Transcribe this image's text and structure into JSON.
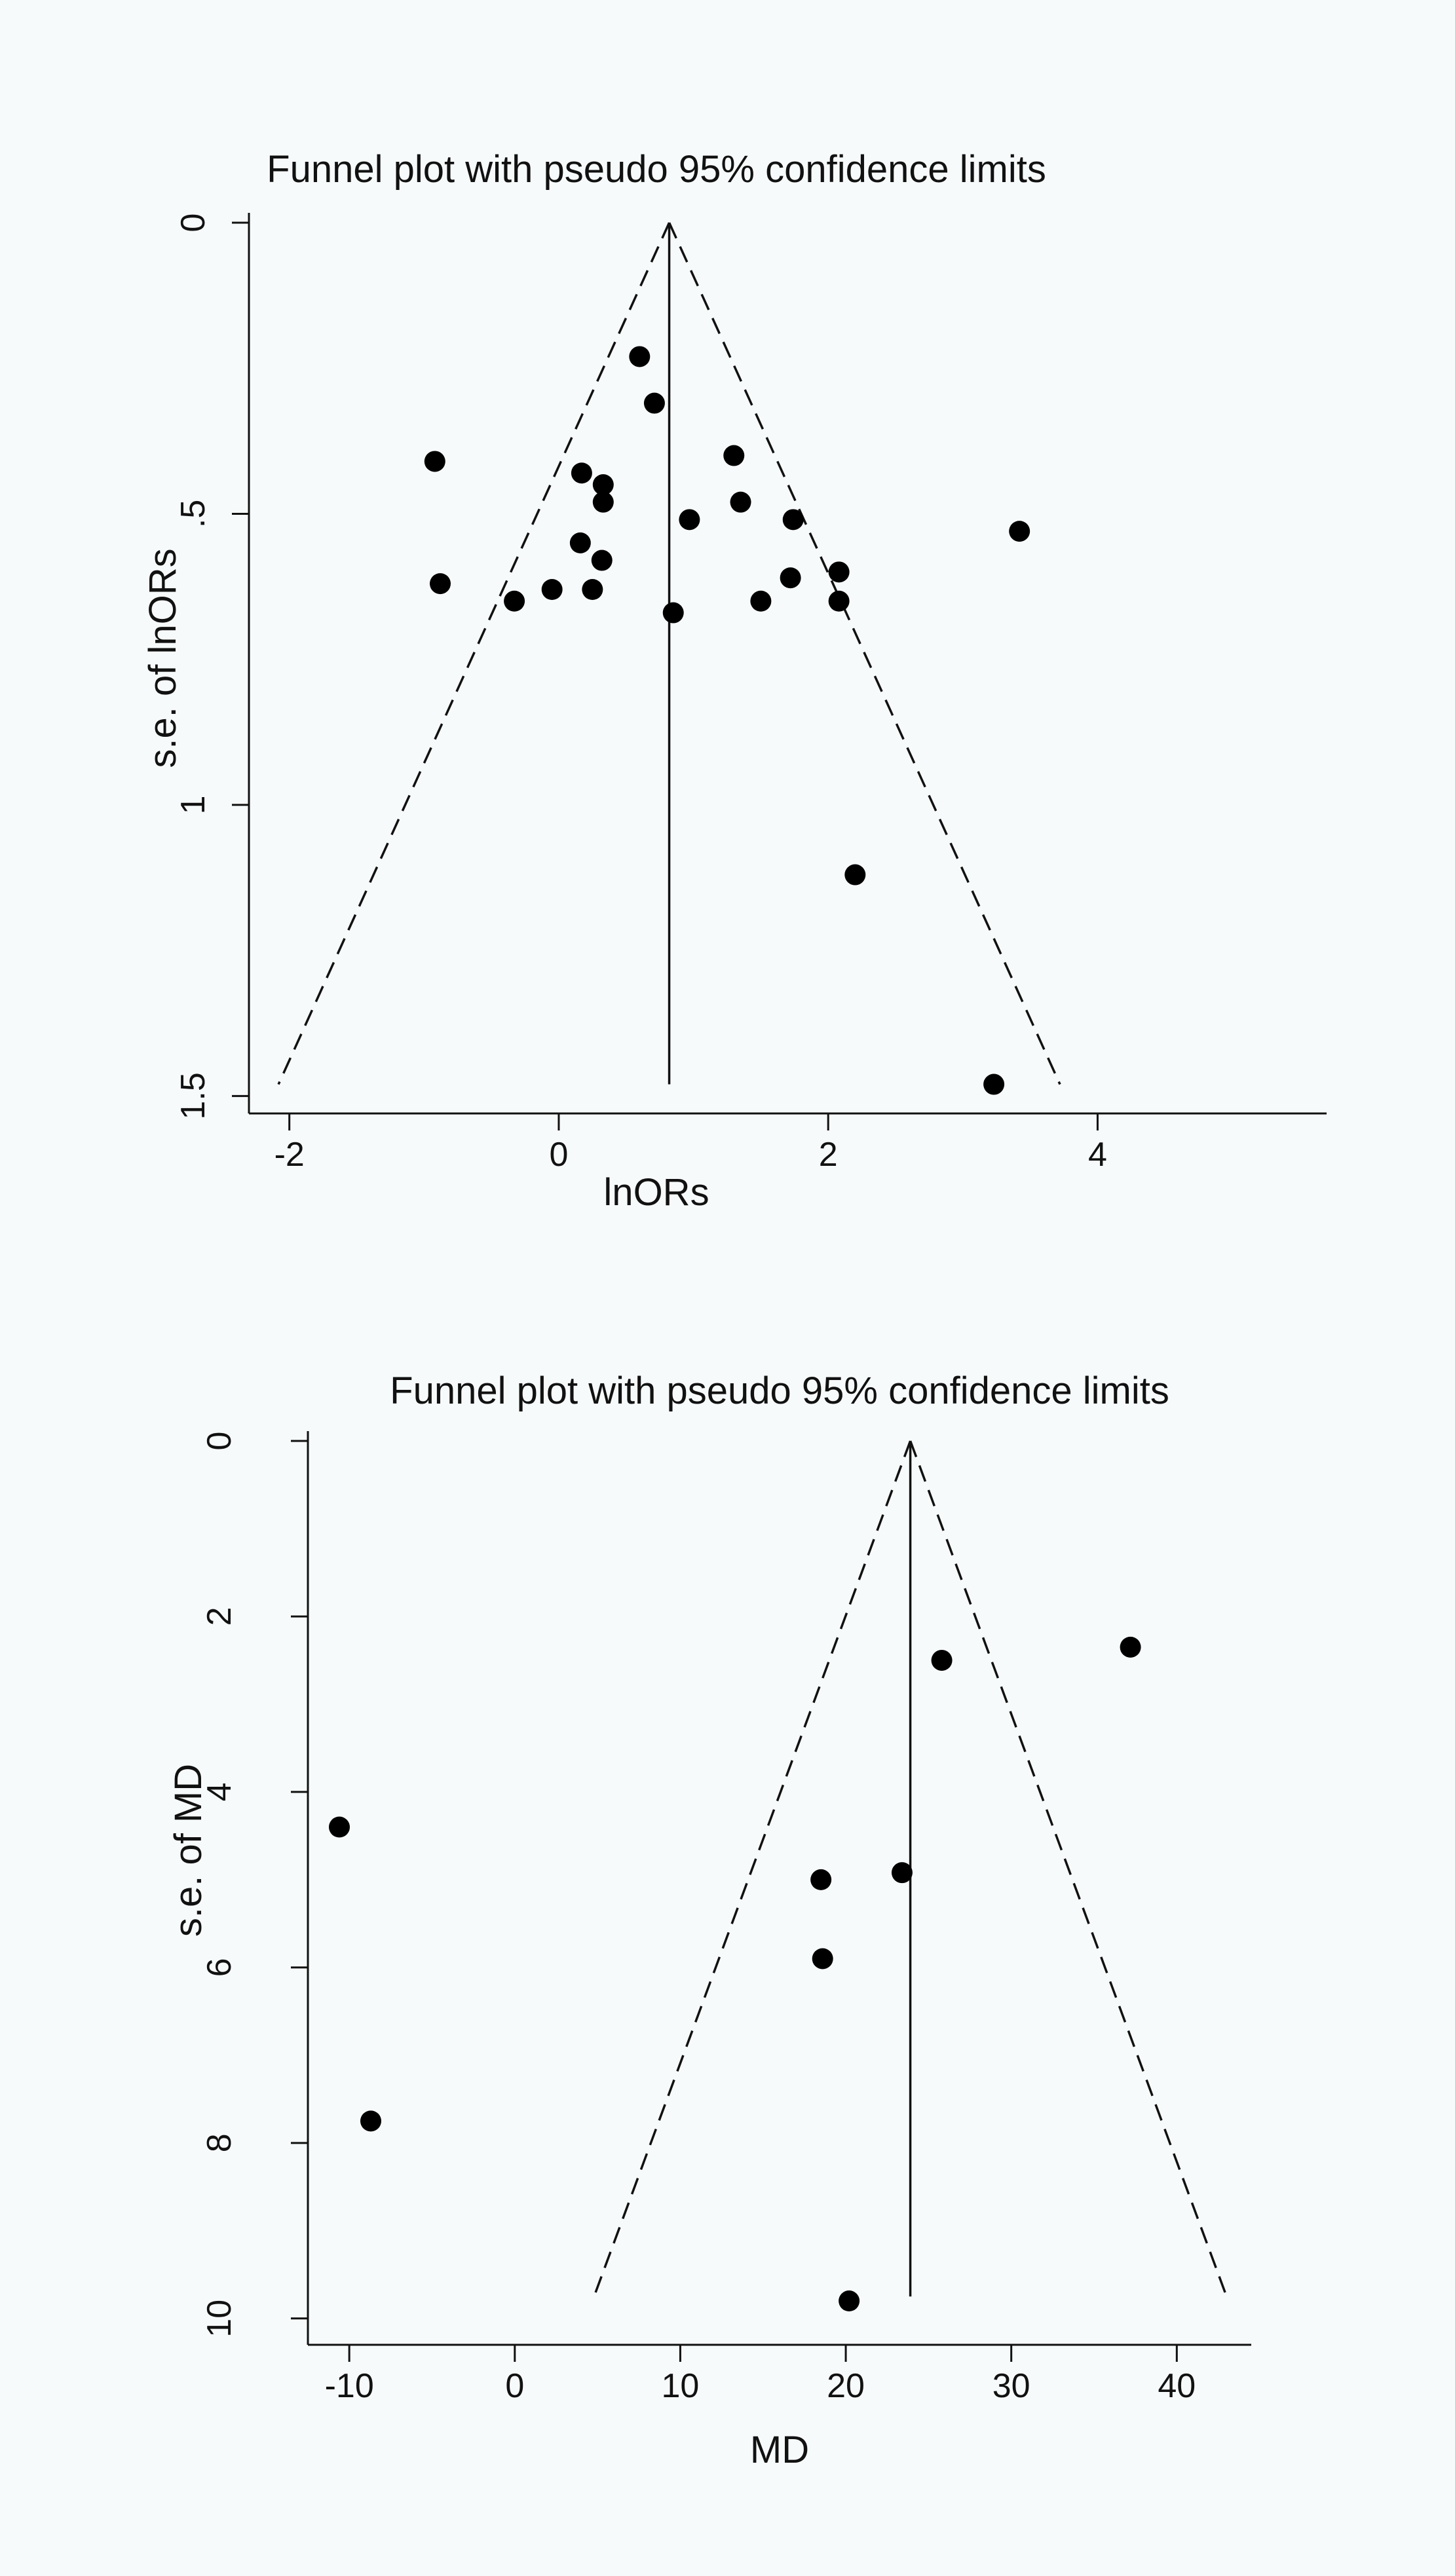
{
  "chart_data": [
    {
      "type": "scatter",
      "variant": "funnel",
      "title": "Funnel plot with pseudo 95% confidence limits",
      "xlabel": "lnORs",
      "ylabel": "s.e. of lnORs",
      "y_reversed": true,
      "xlim": [
        -2.3,
        5.7
      ],
      "ylim": [
        0,
        1.53
      ],
      "x_ticks": [
        -2,
        0,
        2,
        4
      ],
      "y_ticks": [
        0,
        0.5,
        1,
        1.5
      ],
      "x_tick_labels": [
        "-2",
        "0",
        "2",
        "4"
      ],
      "y_tick_labels": [
        "0",
        ".5",
        "1",
        "1.5"
      ],
      "pooled_effect": 0.82,
      "max_se": 1.48,
      "grid": false,
      "points": [
        {
          "x": -0.92,
          "y": 0.41
        },
        {
          "x": -0.88,
          "y": 0.62
        },
        {
          "x": -0.33,
          "y": 0.65
        },
        {
          "x": -0.05,
          "y": 0.63
        },
        {
          "x": 0.16,
          "y": 0.55
        },
        {
          "x": 0.17,
          "y": 0.43
        },
        {
          "x": 0.25,
          "y": 0.63
        },
        {
          "x": 0.32,
          "y": 0.58
        },
        {
          "x": 0.33,
          "y": 0.45
        },
        {
          "x": 0.33,
          "y": 0.48
        },
        {
          "x": 0.6,
          "y": 0.23
        },
        {
          "x": 0.71,
          "y": 0.31
        },
        {
          "x": 0.85,
          "y": 0.67
        },
        {
          "x": 0.97,
          "y": 0.51
        },
        {
          "x": 1.3,
          "y": 0.4
        },
        {
          "x": 1.35,
          "y": 0.48
        },
        {
          "x": 1.5,
          "y": 0.65
        },
        {
          "x": 1.72,
          "y": 0.61
        },
        {
          "x": 1.74,
          "y": 0.51
        },
        {
          "x": 2.08,
          "y": 0.6
        },
        {
          "x": 2.08,
          "y": 0.65
        },
        {
          "x": 2.2,
          "y": 1.12
        },
        {
          "x": 3.23,
          "y": 1.48
        },
        {
          "x": 3.42,
          "y": 0.53
        }
      ]
    },
    {
      "type": "scatter",
      "variant": "funnel",
      "title": "Funnel plot with pseudo 95% confidence limits",
      "xlabel": "MD",
      "ylabel": "s.e. of MD",
      "y_reversed": true,
      "xlim": [
        -12.5,
        44.5
      ],
      "ylim": [
        0,
        10.3
      ],
      "x_ticks": [
        -10,
        0,
        10,
        20,
        30,
        40
      ],
      "y_ticks": [
        0,
        2,
        4,
        6,
        8,
        10
      ],
      "x_tick_labels": [
        "-10",
        "0",
        "10",
        "20",
        "30",
        "40"
      ],
      "y_tick_labels": [
        "0",
        "2",
        "4",
        "6",
        "8",
        "10"
      ],
      "pooled_effect": 23.9,
      "max_se": 9.75,
      "grid": false,
      "points": [
        {
          "x": -10.6,
          "y": 4.4
        },
        {
          "x": -8.7,
          "y": 7.75
        },
        {
          "x": 18.5,
          "y": 5.0
        },
        {
          "x": 18.6,
          "y": 5.9
        },
        {
          "x": 20.2,
          "y": 9.8
        },
        {
          "x": 23.4,
          "y": 4.92
        },
        {
          "x": 25.8,
          "y": 2.5
        },
        {
          "x": 37.2,
          "y": 2.35
        }
      ]
    }
  ]
}
